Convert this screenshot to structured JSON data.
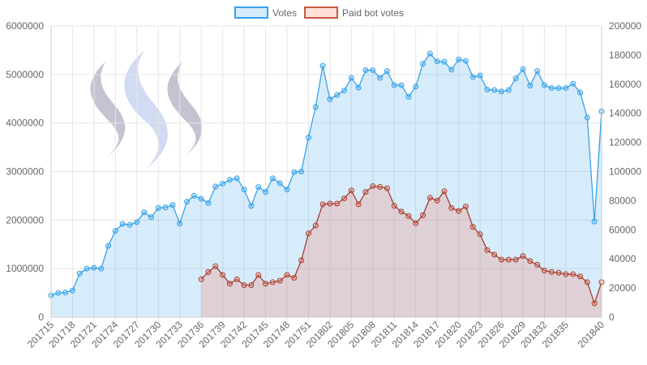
{
  "colors": {
    "votes_line": "#36a2eb",
    "votes_fill": "rgba(54,162,235,0.2)",
    "bot_line": "#a33f2f",
    "bot_fill": "rgba(255,99,71,0.2)",
    "grid": "#e6e6e6",
    "logo": "#b3b3c4",
    "logo_mid": "#c8d6f5"
  },
  "chart_data": {
    "type": "area",
    "legend_position": "top",
    "grid": true,
    "x": [
      "201715",
      "201716",
      "201717",
      "201718",
      "201719",
      "201720",
      "201721",
      "201722",
      "201723",
      "201724",
      "201725",
      "201726",
      "201727",
      "201728",
      "201729",
      "201730",
      "201731",
      "201732",
      "201733",
      "201734",
      "201735",
      "201736",
      "201737",
      "201738",
      "201739",
      "201740",
      "201741",
      "201742",
      "201743",
      "201744",
      "201745",
      "201746",
      "201747",
      "201748",
      "201749",
      "201750",
      "201751",
      "201752",
      "201801",
      "201802",
      "201803",
      "201804",
      "201805",
      "201806",
      "201807",
      "201808",
      "201809",
      "201810",
      "201811",
      "201812",
      "201813",
      "201814",
      "201815",
      "201816",
      "201817",
      "201818",
      "201819",
      "201820",
      "201821",
      "201822",
      "201823",
      "201824",
      "201825",
      "201826",
      "201827",
      "201828",
      "201829",
      "201830",
      "201831",
      "201832",
      "201833",
      "201834",
      "201835",
      "201836",
      "201837",
      "201838",
      "201839",
      "201840"
    ],
    "x_tick_labels": [
      "201715",
      "201718",
      "201721",
      "201724",
      "201727",
      "201730",
      "201733",
      "201736",
      "201739",
      "201742",
      "201745",
      "201748",
      "201751",
      "201802",
      "201805",
      "201808",
      "201811",
      "201814",
      "201817",
      "201820",
      "201823",
      "201826",
      "201829",
      "201832",
      "201835",
      "201840"
    ],
    "y_left": {
      "min": 0,
      "max": 6000000,
      "ticks": [
        "0",
        "1000000",
        "2000000",
        "3000000",
        "4000000",
        "5000000",
        "6000000"
      ]
    },
    "y_right": {
      "min": 0,
      "max": 200000,
      "ticks": [
        "0",
        "20000",
        "40000",
        "60000",
        "80000",
        "100000",
        "120000",
        "140000",
        "160000",
        "180000",
        "200000"
      ]
    },
    "series": [
      {
        "name": "Votes",
        "axis": "left",
        "values": [
          450000,
          500000,
          510000,
          550000,
          900000,
          1000000,
          1020000,
          1000000,
          1470000,
          1780000,
          1920000,
          1900000,
          1960000,
          2160000,
          2060000,
          2250000,
          2260000,
          2310000,
          1930000,
          2380000,
          2500000,
          2440000,
          2350000,
          2690000,
          2750000,
          2830000,
          2860000,
          2630000,
          2290000,
          2680000,
          2580000,
          2860000,
          2760000,
          2630000,
          2990000,
          3000000,
          3700000,
          4330000,
          5180000,
          4490000,
          4580000,
          4670000,
          4930000,
          4730000,
          5090000,
          5090000,
          4930000,
          5070000,
          4780000,
          4780000,
          4540000,
          4750000,
          5220000,
          5430000,
          5270000,
          5260000,
          5100000,
          5310000,
          5280000,
          4950000,
          4980000,
          4690000,
          4680000,
          4650000,
          4680000,
          4920000,
          5110000,
          4770000,
          5070000,
          4780000,
          4720000,
          4720000,
          4720000,
          4810000,
          4630000,
          4110000,
          1970000,
          4240000
        ]
      },
      {
        "name": "Paid bot votes",
        "axis": "right",
        "values": [
          null,
          null,
          null,
          null,
          null,
          null,
          null,
          null,
          null,
          null,
          null,
          null,
          null,
          null,
          null,
          null,
          null,
          null,
          null,
          null,
          null,
          26000,
          31000,
          35000,
          29000,
          23000,
          26000,
          22000,
          22000,
          29000,
          23000,
          24000,
          25000,
          29000,
          27000,
          39000,
          57500,
          63000,
          77500,
          78000,
          78000,
          81500,
          87000,
          77500,
          86000,
          90000,
          89500,
          88500,
          76500,
          72500,
          69500,
          64500,
          70000,
          82000,
          80000,
          86500,
          75000,
          73000,
          76000,
          62000,
          57000,
          46000,
          43000,
          39500,
          39500,
          39500,
          42000,
          38500,
          36000,
          32000,
          31000,
          30500,
          29500,
          29500,
          28000,
          24000,
          9500,
          24000
        ]
      }
    ]
  }
}
